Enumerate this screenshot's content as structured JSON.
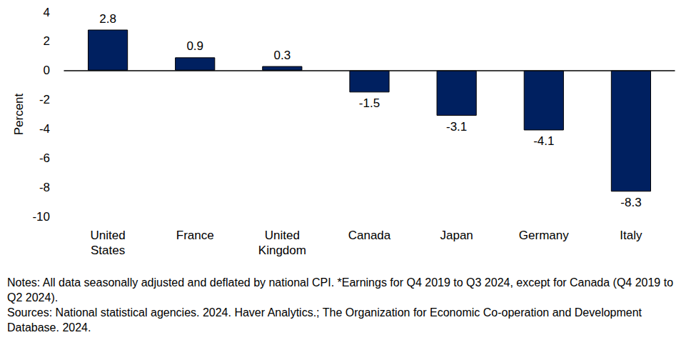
{
  "chart_data": {
    "type": "bar",
    "categories": [
      "United States",
      "France",
      "United Kingdom",
      "Canada",
      "Japan",
      "Germany",
      "Italy"
    ],
    "values": [
      2.8,
      0.9,
      0.3,
      -1.5,
      -3.1,
      -4.1,
      -8.3
    ],
    "color": "#002060",
    "ylabel": "Percent",
    "ylim": [
      -10,
      4
    ],
    "yticks": [
      -10,
      -8,
      -6,
      -4,
      -2,
      0,
      2,
      4
    ],
    "grid": false,
    "data_labels": true,
    "notes": [
      "Notes: All data seasonally adjusted and deflated by national CPI. *Earnings for Q4 2019 to Q3 2024, except for Canada (Q4 2019 to Q2 2024).",
      "Sources: National statistical agencies. 2024. Haver Analytics.; The Organization for Economic Co-operation and Development Database. 2024."
    ]
  }
}
